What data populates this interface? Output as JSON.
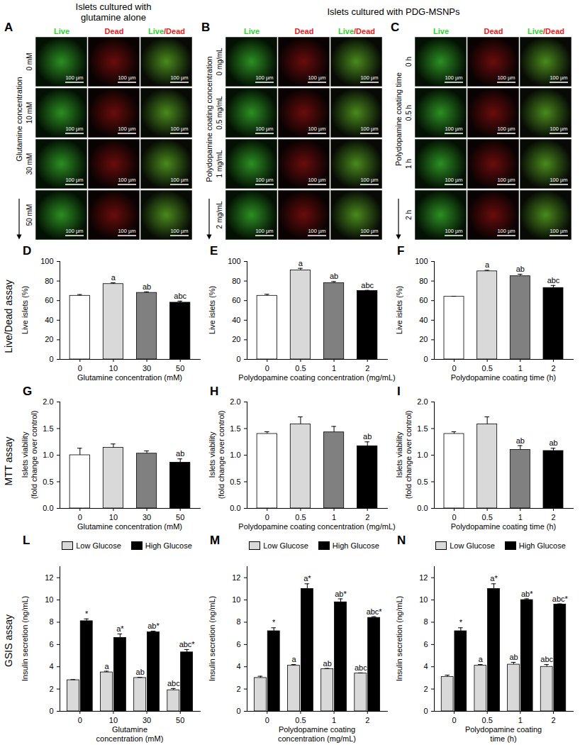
{
  "header": {
    "left": "Islets cultured with\nglutamine alone",
    "right": "Islets cultured with PDG-MSNPs"
  },
  "image_panels": [
    {
      "panel": "A",
      "columns": [
        "Live",
        "Dead",
        "Live/Dead"
      ],
      "row_title": "Glutamine concentration",
      "rows": [
        "0 mM",
        "10 mM",
        "30 mM",
        "50 mM"
      ],
      "scale_bar": "100 µm"
    },
    {
      "panel": "B",
      "columns": [
        "Live",
        "Dead",
        "Live/Dead"
      ],
      "row_title": "Polydopamine coating concentration",
      "rows": [
        "0 mg/mL",
        "0.5 mg/mL",
        "1 mg/mL",
        "2 mg/mL"
      ],
      "scale_bar": "100 µm"
    },
    {
      "panel": "C",
      "columns": [
        "Live",
        "Dead",
        "Live/Dead"
      ],
      "row_title": "Polydopamine coating time",
      "rows": [
        "0 h",
        "0.5 h",
        "1 h",
        "2 h"
      ],
      "scale_bar": "100 µm"
    }
  ],
  "row_labels": [
    "Live/Dead assay",
    "MTT assay",
    "GSIS assay"
  ],
  "chart_data": [
    {
      "panel": "D",
      "type": "bar",
      "xlabel": "Glutamine concentration (mM)",
      "ylabel": "Live islets (%)",
      "categories": [
        "0",
        "10",
        "30",
        "50"
      ],
      "values": [
        65,
        77,
        68,
        58
      ],
      "errors": [
        1.2,
        1.2,
        1.0,
        1.5
      ],
      "significance": [
        "",
        "a",
        "ab",
        "abc"
      ],
      "colors": [
        "#ffffff",
        "#d9d9d9",
        "#808080",
        "#000000"
      ],
      "ylim": [
        0,
        100
      ],
      "yticks": [
        0,
        20,
        40,
        60,
        80,
        100
      ]
    },
    {
      "panel": "E",
      "type": "bar",
      "xlabel": "Polydopamine coating concentration (mg/mL)",
      "ylabel": "Live islets (%)",
      "categories": [
        "0",
        "0.5",
        "1",
        "2"
      ],
      "values": [
        65,
        91,
        78,
        70
      ],
      "errors": [
        1.5,
        2,
        1.5,
        0.5
      ],
      "significance": [
        "",
        "a",
        "ab",
        "abc"
      ],
      "colors": [
        "#ffffff",
        "#d9d9d9",
        "#808080",
        "#000000"
      ],
      "ylim": [
        0,
        100
      ],
      "yticks": [
        0,
        20,
        40,
        60,
        80,
        100
      ]
    },
    {
      "panel": "F",
      "type": "bar",
      "xlabel": "Polydopamine coating time (h)",
      "ylabel": "Live islets (%)",
      "categories": [
        "0",
        "0.5",
        "1",
        "2"
      ],
      "values": [
        64,
        90,
        85,
        73
      ],
      "errors": [
        0.5,
        1,
        2,
        2.5
      ],
      "significance": [
        "",
        "a",
        "ab",
        "abc"
      ],
      "colors": [
        "#ffffff",
        "#d9d9d9",
        "#808080",
        "#000000"
      ],
      "ylim": [
        0,
        100
      ],
      "yticks": [
        0,
        20,
        40,
        60,
        80,
        100
      ]
    },
    {
      "panel": "G",
      "type": "bar",
      "xlabel": "Glutamine concentration (mM)",
      "ylabel": "Islets viability\n(fold change over control)",
      "categories": [
        "0",
        "10",
        "30",
        "50"
      ],
      "values": [
        1.0,
        1.14,
        1.03,
        0.86
      ],
      "errors": [
        0.13,
        0.07,
        0.05,
        0.07
      ],
      "significance": [
        "",
        "",
        "",
        "ab"
      ],
      "colors": [
        "#ffffff",
        "#d9d9d9",
        "#808080",
        "#000000"
      ],
      "ylim": [
        0,
        2
      ],
      "yticks": [
        {
          "value": 0,
          "label": "0.0"
        },
        0.5,
        {
          "value": 1,
          "label": "1.0"
        },
        1.5,
        {
          "value": 2,
          "label": "2.0"
        }
      ]
    },
    {
      "panel": "H",
      "type": "bar",
      "xlabel": "Polydopamine coating concentration (mg/mL)",
      "ylabel": "Islets viability\n(fold change over control)",
      "categories": [
        "0",
        "0.5",
        "1",
        "2"
      ],
      "values": [
        1.4,
        1.58,
        1.43,
        1.17
      ],
      "errors": [
        0.04,
        0.14,
        0.11,
        0.08
      ],
      "significance": [
        "",
        "",
        "",
        "ab"
      ],
      "colors": [
        "#ffffff",
        "#d9d9d9",
        "#808080",
        "#000000"
      ],
      "ylim": [
        0,
        2
      ],
      "yticks": [
        {
          "value": 0,
          "label": "0.0"
        },
        0.5,
        {
          "value": 1,
          "label": "1.0"
        },
        1.5,
        {
          "value": 2,
          "label": "2.0"
        }
      ]
    },
    {
      "panel": "I",
      "type": "bar",
      "xlabel": "Polydopamine coating time (h)",
      "ylabel": "Islets viability\n(fold change over control)",
      "categories": [
        "0",
        "0.5",
        "1",
        "2"
      ],
      "values": [
        1.4,
        1.58,
        1.1,
        1.08
      ],
      "errors": [
        0.04,
        0.14,
        0.08,
        0.05
      ],
      "significance": [
        "",
        "",
        "ab",
        "ab"
      ],
      "colors": [
        "#ffffff",
        "#d9d9d9",
        "#808080",
        "#000000"
      ],
      "ylim": [
        0,
        2
      ],
      "yticks": [
        {
          "value": 0,
          "label": "0.0"
        },
        0.5,
        {
          "value": 1,
          "label": "1.0"
        },
        1.5,
        {
          "value": 2,
          "label": "2.0"
        }
      ]
    },
    {
      "panel": "L",
      "type": "bar",
      "xlabel": "Glutamine\nconcentration (mM)",
      "ylabel": "Insulin secretion (ng/mL)",
      "categories": [
        "0",
        "10",
        "30",
        "50"
      ],
      "legend": "top",
      "series": [
        {
          "name": "Low Glucose",
          "color": "#d9d9d9",
          "values": [
            2.8,
            3.5,
            3.0,
            1.9
          ],
          "errors": [
            0.05,
            0.1,
            0.05,
            0.15
          ],
          "significance": [
            "",
            "a",
            "ab",
            "abc"
          ]
        },
        {
          "name": "High Glucose",
          "color": "#000000",
          "values": [
            8.1,
            6.6,
            7.1,
            5.3
          ],
          "errors": [
            0.2,
            0.35,
            0.1,
            0.25
          ],
          "significance": [
            "*",
            "a*",
            "ab*",
            "abc*"
          ]
        }
      ],
      "ylim": [
        0,
        13
      ],
      "yticks": [
        0,
        2,
        4,
        6,
        8,
        10,
        12
      ]
    },
    {
      "panel": "M",
      "type": "bar",
      "xlabel": "Polydopamine coating\nconcentration (mg/mL)",
      "ylabel": "Insulin secretion (ng/mL)",
      "categories": [
        "0",
        "0.5",
        "1",
        "2"
      ],
      "legend": "top",
      "series": [
        {
          "name": "Low Glucose",
          "color": "#d9d9d9",
          "values": [
            3.0,
            4.1,
            3.8,
            3.4
          ],
          "errors": [
            0.15,
            0.1,
            0.05,
            0.05
          ],
          "significance": [
            "",
            "a",
            "ab",
            "abc"
          ]
        },
        {
          "name": "High Glucose",
          "color": "#000000",
          "values": [
            7.2,
            11.0,
            9.8,
            8.4
          ],
          "errors": [
            0.3,
            0.45,
            0.3,
            0.1
          ],
          "significance": [
            "*",
            "a*",
            "ab*",
            "abc*"
          ]
        }
      ],
      "ylim": [
        0,
        13
      ],
      "yticks": [
        0,
        2,
        4,
        6,
        8,
        10,
        12
      ]
    },
    {
      "panel": "N",
      "type": "bar",
      "xlabel": "Polydopamine coating\ntime (h)",
      "ylabel": "Insulin secretion (ng/mL)",
      "categories": [
        "0",
        "0.5",
        "1",
        "2"
      ],
      "legend": "top",
      "series": [
        {
          "name": "Low Glucose",
          "color": "#d9d9d9",
          "values": [
            3.1,
            4.1,
            4.2,
            4.0
          ],
          "errors": [
            0.15,
            0.1,
            0.2,
            0.2
          ],
          "significance": [
            "",
            "a",
            "ab",
            "abc"
          ]
        },
        {
          "name": "High Glucose",
          "color": "#000000",
          "values": [
            7.2,
            11.0,
            10.0,
            9.6
          ],
          "errors": [
            0.3,
            0.45,
            0.1,
            0.05
          ],
          "significance": [
            "*",
            "a*",
            "ab*",
            "abc*"
          ]
        }
      ],
      "ylim": [
        0,
        13
      ],
      "yticks": [
        0,
        2,
        4,
        6,
        8,
        10,
        12
      ]
    }
  ]
}
